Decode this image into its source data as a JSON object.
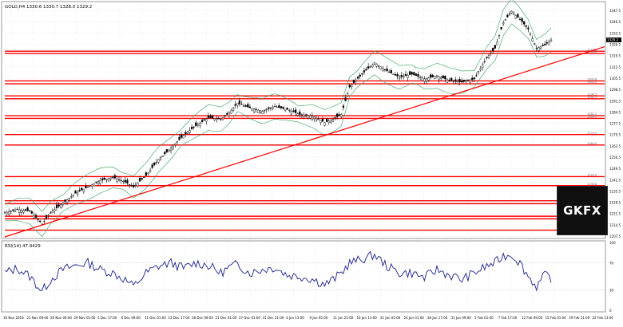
{
  "symbol_header": "GOLD,H4  1330.6 1330.7 1328.0 1329.2",
  "rsi_header": "RSI(14) 47.9429",
  "logo_text": "GKFX",
  "colors": {
    "candle": "#000000",
    "band": "#2e9e58",
    "resistance": "#ff0000",
    "rsi": "#1a1f8c",
    "fib": "#999999"
  },
  "chart_data": [
    {
      "type": "candlestick",
      "title": "GOLD,H4",
      "ylim": [
        1207,
        1352
      ],
      "price_labels": [
        "1347.5",
        "1340.5",
        "1333.5",
        "1326.5",
        "1319.5",
        "1312.5",
        "1305.5",
        "1298.5",
        "1291.5",
        "1284.5",
        "1277.5",
        "1270.5",
        "1263.5",
        "1256.5",
        "1249.5",
        "1242.5",
        "1235.5",
        "1228.5",
        "1221.5",
        "1214.5",
        "1207.5"
      ],
      "x_labels": [
        "16 Nov 2018",
        "21 Nov 09:00",
        "26 Nov 09:00",
        "29 Nov 01:00",
        "3 Dec 17:00",
        "6 Dec 09:00",
        "11 Dec 01:00",
        "13 Dec 17:00",
        "18 Dec 09:00",
        "21 Dec 01:00",
        "27 Dec 01:00",
        "31 Dec 21:00",
        "4 Jan 13:00",
        "9 Jan 05:00",
        "11 Jan 21:00",
        "16 Jan 13:00",
        "21 Jan 05:00",
        "24 Jan 01:00",
        "28 Jan 17:00",
        "31 Jan 09:00",
        "5 Feb 01:00",
        "7 Feb 17:00",
        "12 Feb 09:00",
        "15 Feb 01:00",
        "19 Feb 21:00",
        "22 Feb 13:00"
      ],
      "close_path": [
        [
          0,
          1222
        ],
        [
          6,
          1224
        ],
        [
          12,
          1223
        ],
        [
          18,
          1215
        ],
        [
          22,
          1222
        ],
        [
          28,
          1228
        ],
        [
          34,
          1234
        ],
        [
          40,
          1238
        ],
        [
          46,
          1242
        ],
        [
          52,
          1244
        ],
        [
          58,
          1241
        ],
        [
          62,
          1238
        ],
        [
          68,
          1245
        ],
        [
          74,
          1255
        ],
        [
          80,
          1262
        ],
        [
          86,
          1270
        ],
        [
          92,
          1276
        ],
        [
          98,
          1281
        ],
        [
          104,
          1280
        ],
        [
          108,
          1284
        ],
        [
          112,
          1290
        ],
        [
          118,
          1287
        ],
        [
          124,
          1285
        ],
        [
          130,
          1288
        ],
        [
          136,
          1286
        ],
        [
          142,
          1283
        ],
        [
          148,
          1282
        ],
        [
          154,
          1278
        ],
        [
          158,
          1280
        ],
        [
          162,
          1283
        ],
        [
          166,
          1300
        ],
        [
          172,
          1308
        ],
        [
          178,
          1315
        ],
        [
          184,
          1310
        ],
        [
          190,
          1306
        ],
        [
          196,
          1308
        ],
        [
          202,
          1305
        ],
        [
          208,
          1307
        ],
        [
          214,
          1304
        ],
        [
          220,
          1303
        ],
        [
          226,
          1305
        ],
        [
          232,
          1318
        ],
        [
          236,
          1324
        ],
        [
          240,
          1340
        ],
        [
          244,
          1347
        ],
        [
          248,
          1342
        ],
        [
          252,
          1336
        ],
        [
          256,
          1324
        ],
        [
          260,
          1326
        ],
        [
          263,
          1329.2
        ]
      ],
      "n_bars": 263,
      "bollinger_width": 5,
      "resistance_levels": [
        {
          "price": 1322.2,
          "label": "1322.2"
        },
        {
          "price": 1320.8,
          "label": "1320.8"
        },
        {
          "price": 1303.8,
          "label": "1303.8"
        },
        {
          "price": 1302.0,
          "label": "1302.0"
        },
        {
          "price": 1294.5,
          "label": "1294.5"
        },
        {
          "price": 1292.7,
          "label": "1292.7"
        },
        {
          "price": 1282.2,
          "label": "1282.2"
        },
        {
          "price": 1280.5,
          "label": "1280.5"
        },
        {
          "price": 1270.5,
          "label": "1270.5"
        },
        {
          "price": 1264.0,
          "label": "1264.0"
        },
        {
          "price": 1244.4,
          "label": "1244.4"
        },
        {
          "price": 1238.8,
          "label": "1238.8"
        },
        {
          "price": 1229.4,
          "label": "1229.4"
        },
        {
          "price": 1227.6,
          "label": "1227.6"
        },
        {
          "price": 1219.8,
          "label": "1219.8"
        },
        {
          "price": 1218.2,
          "label": "1218.2"
        },
        {
          "price": 1211.2,
          "label": "1211.2"
        }
      ],
      "trendline": {
        "from": [
          0,
          1207
        ],
        "to": [
          263,
          1325
        ]
      },
      "current_price": "1329.2"
    },
    {
      "type": "line",
      "title": "RSI(14) 47.9429",
      "ylim": [
        0,
        100
      ],
      "levels": [
        "100",
        "70",
        "30",
        "0"
      ],
      "rsi_path": [
        [
          0,
          55
        ],
        [
          6,
          62
        ],
        [
          12,
          50
        ],
        [
          18,
          28
        ],
        [
          22,
          45
        ],
        [
          28,
          60
        ],
        [
          34,
          66
        ],
        [
          40,
          70
        ],
        [
          46,
          60
        ],
        [
          52,
          55
        ],
        [
          58,
          45
        ],
        [
          62,
          35
        ],
        [
          68,
          55
        ],
        [
          74,
          65
        ],
        [
          80,
          70
        ],
        [
          86,
          62
        ],
        [
          92,
          70
        ],
        [
          98,
          66
        ],
        [
          104,
          55
        ],
        [
          108,
          63
        ],
        [
          112,
          68
        ],
        [
          118,
          55
        ],
        [
          124,
          60
        ],
        [
          130,
          63
        ],
        [
          136,
          52
        ],
        [
          142,
          50
        ],
        [
          148,
          46
        ],
        [
          154,
          38
        ],
        [
          158,
          45
        ],
        [
          162,
          55
        ],
        [
          166,
          70
        ],
        [
          172,
          75
        ],
        [
          178,
          82
        ],
        [
          184,
          65
        ],
        [
          190,
          55
        ],
        [
          196,
          55
        ],
        [
          202,
          48
        ],
        [
          208,
          60
        ],
        [
          214,
          52
        ],
        [
          220,
          45
        ],
        [
          226,
          55
        ],
        [
          232,
          65
        ],
        [
          236,
          70
        ],
        [
          240,
          80
        ],
        [
          244,
          82
        ],
        [
          248,
          70
        ],
        [
          252,
          50
        ],
        [
          256,
          35
        ],
        [
          260,
          52
        ],
        [
          263,
          47.9
        ]
      ]
    }
  ]
}
